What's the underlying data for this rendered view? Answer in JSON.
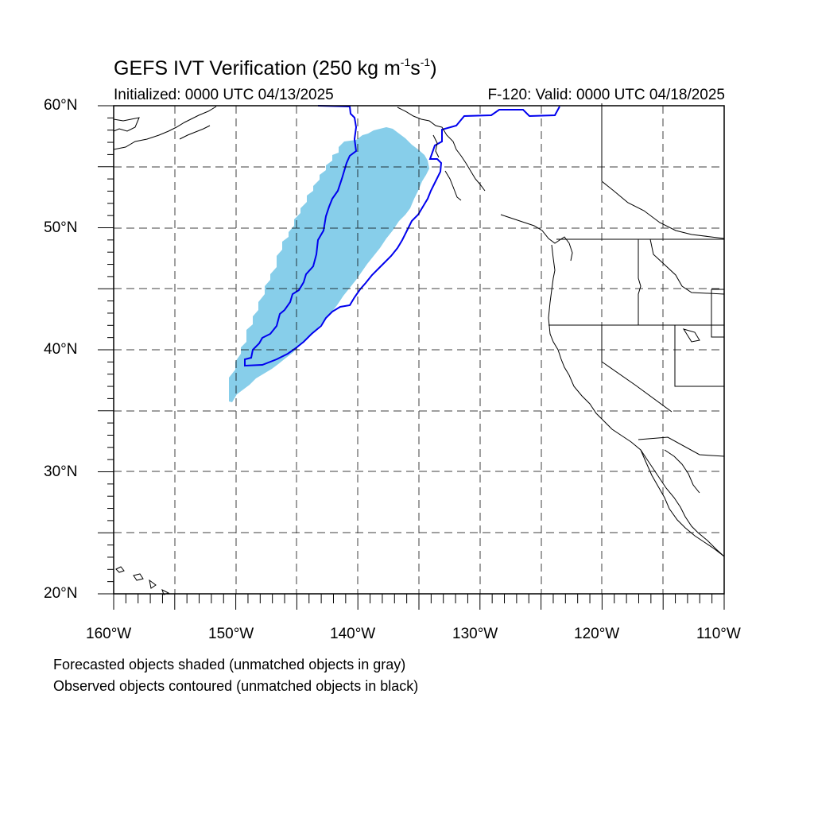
{
  "title": {
    "main": "GEFS IVT Verification (250 kg m",
    "sup1": "-1",
    "mid": "s",
    "sup2": "-1",
    "end": ")"
  },
  "initialized": "Initialized: 0000 UTC 04/13/2025",
  "valid": "F-120: Valid: 0000 UTC 04/18/2025",
  "lat_labels": [
    "60°N",
    "50°N",
    "40°N",
    "30°N",
    "20°N"
  ],
  "lon_labels": [
    "160°W",
    "150°W",
    "140°W",
    "130°W",
    "120°W",
    "110°W"
  ],
  "notes": [
    "Forecasted objects shaded (unmatched objects in gray)",
    "Observed objects contoured (unmatched objects in black)"
  ],
  "colors": {
    "forecast_fill": "#87ceea",
    "observed_contour": "#0000ee",
    "coastline": "#000000",
    "grid": "#000000"
  }
}
